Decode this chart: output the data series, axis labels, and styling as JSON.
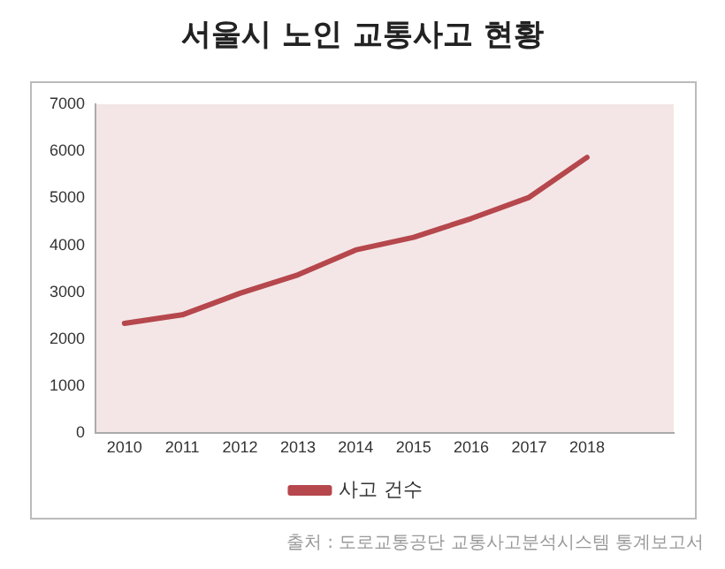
{
  "chart_data": {
    "type": "line",
    "title": "서울시 노인 교통사고 현황",
    "categories": [
      "2010",
      "2011",
      "2012",
      "2013",
      "2014",
      "2015",
      "2016",
      "2017",
      "2018",
      null
    ],
    "series": [
      {
        "name": "사고 건수",
        "color": "#b5474d",
        "values": [
          2340,
          2520,
          2980,
          3370,
          3900,
          4170,
          4570,
          5020,
          5870,
          null
        ]
      }
    ],
    "ylim": [
      0,
      7000
    ],
    "yticks": [
      0,
      1000,
      2000,
      3000,
      4000,
      5000,
      6000,
      7000
    ],
    "grid": false,
    "legend": "bottom",
    "marker": "none",
    "annotations": [
      "출처 : 도로교통공단 교통사고분석시스템 통계보고서"
    ]
  }
}
